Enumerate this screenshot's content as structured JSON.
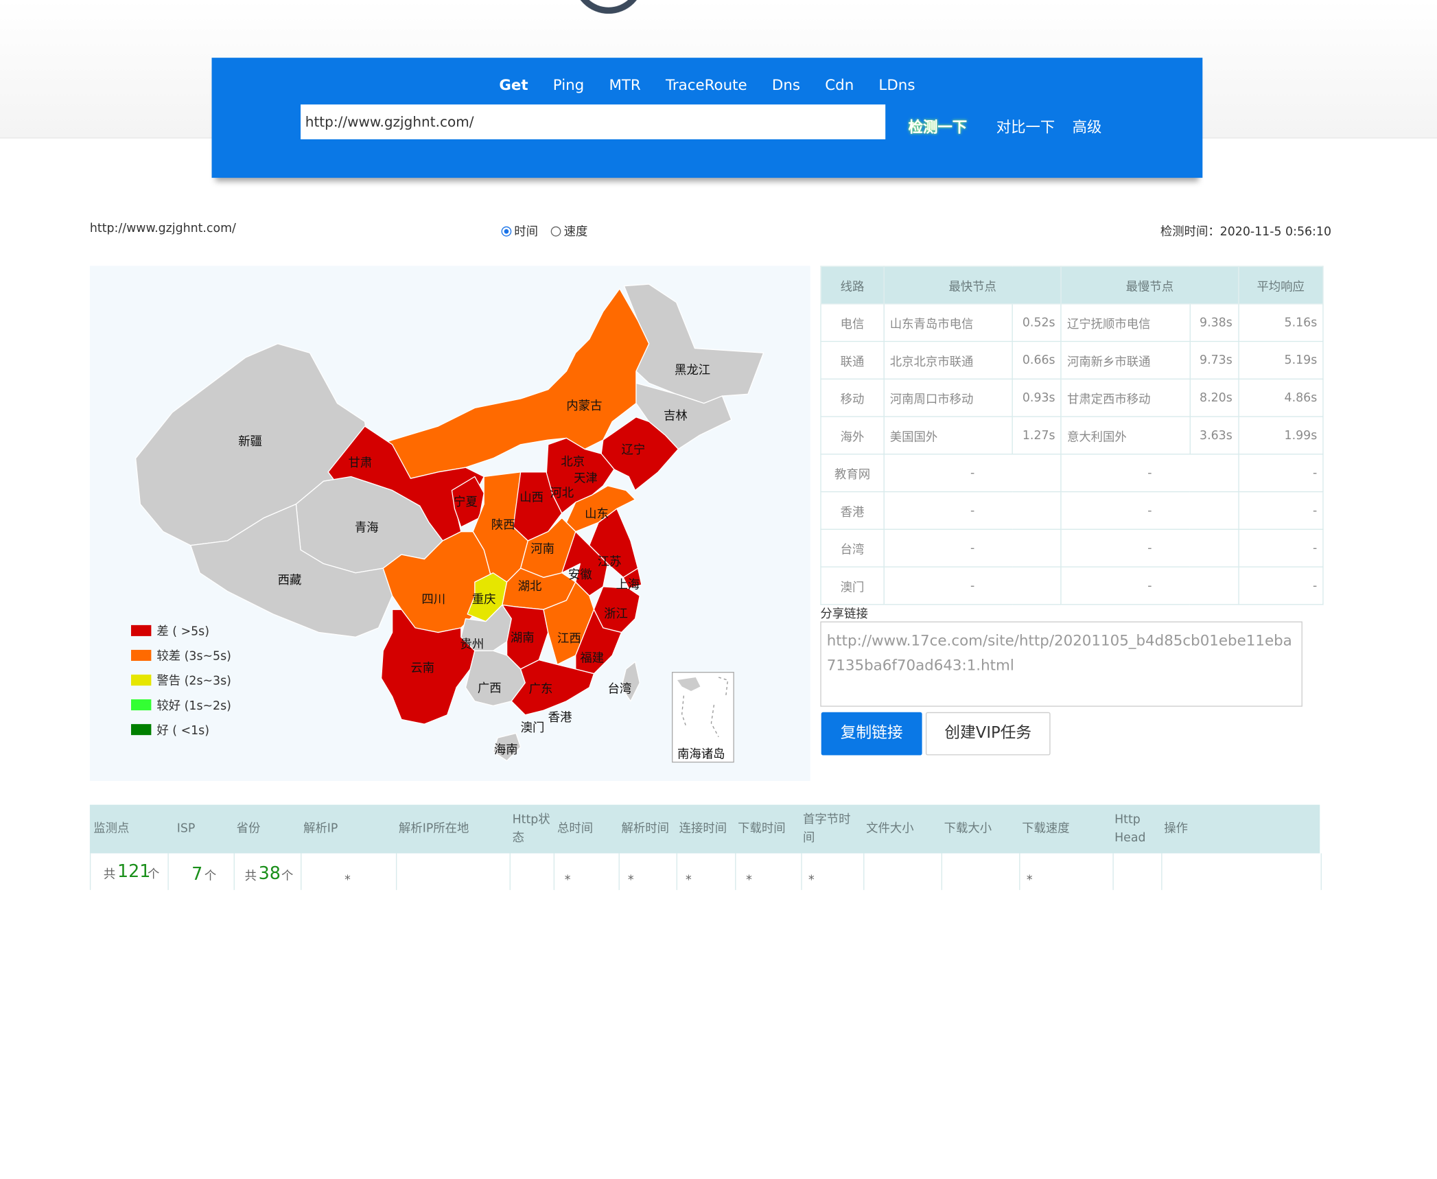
{
  "header": {
    "tabs": [
      "Get",
      "Ping",
      "MTR",
      "TraceRoute",
      "Dns",
      "Cdn",
      "LDns"
    ],
    "active_tab": "Get",
    "url_value": "http://www.gzjghnt.com/",
    "detect_label": "检测一下",
    "compare_label": "对比一下",
    "advanced_label": "高级"
  },
  "info": {
    "url": "http://www.gzjghnt.com/",
    "radio_time": "时间",
    "radio_speed": "速度",
    "check_time": "检测时间：2020-11-5 0:56:10"
  },
  "map": {
    "provinces": {
      "heilongjiang": "黑龙江",
      "jilin": "吉林",
      "liaoning": "辽宁",
      "neimenggu": "内蒙古",
      "xinjiang": "新疆",
      "gansu": "甘肃",
      "qinghai": "青海",
      "xizang": "西藏",
      "ningxia": "宁夏",
      "shanxi": "山西",
      "hebei": "河北",
      "beijing": "北京",
      "tianjin": "天津",
      "shandong": "山东",
      "shaanxi": "陕西",
      "henan": "河南",
      "jiangsu": "江苏",
      "anhui": "安徽",
      "shanghai": "上海",
      "hubei": "湖北",
      "sichuan": "四川",
      "chongqing": "重庆",
      "zhejiang": "浙江",
      "guizhou": "贵州",
      "hunan": "湖南",
      "jiangxi": "江西",
      "fujian": "福建",
      "yunnan": "云南",
      "guangxi": "广西",
      "guangdong": "广东",
      "taiwan": "台湾",
      "xianggang": "香港",
      "aomen": "澳门",
      "hainan": "海南"
    },
    "nanhai_label": "南海诸岛",
    "colors": {
      "bad": "#d40000",
      "worse": "#ff6a00",
      "warn": "#e6e600",
      "good": "#33ff33",
      "best": "#008000",
      "none": "#cccccc"
    },
    "legend": [
      {
        "label": "差 ( >5s)",
        "color": "#d40000"
      },
      {
        "label": "较差 (3s~5s)",
        "color": "#ff6a00"
      },
      {
        "label": "警告 (2s~3s)",
        "color": "#e6e600"
      },
      {
        "label": "较好 (1s~2s)",
        "color": "#33ff33"
      },
      {
        "label": "好 ( <1s)",
        "color": "#008000"
      }
    ]
  },
  "summary": {
    "headers": [
      "线路",
      "最快节点",
      "最慢节点",
      "平均响应"
    ],
    "rows": [
      {
        "line": "电信",
        "fast": "山东青岛市电信",
        "fast_t": "0.52s",
        "slow": "辽宁抚顺市电信",
        "slow_t": "9.38s",
        "avg": "5.16s"
      },
      {
        "line": "联通",
        "fast": "北京北京市联通",
        "fast_t": "0.66s",
        "slow": "河南新乡市联通",
        "slow_t": "9.73s",
        "avg": "5.19s"
      },
      {
        "line": "移动",
        "fast": "河南周口市移动",
        "fast_t": "0.93s",
        "slow": "甘肃定西市移动",
        "slow_t": "8.20s",
        "avg": "4.86s"
      },
      {
        "line": "海外",
        "fast": "美国国外",
        "fast_t": "1.27s",
        "slow": "意大利国外",
        "slow_t": "3.63s",
        "avg": "1.99s"
      },
      {
        "line": "教育网",
        "fast": "-",
        "fast_t": "",
        "slow": "-",
        "slow_t": "",
        "avg": "-"
      },
      {
        "line": "香港",
        "fast": "-",
        "fast_t": "",
        "slow": "-",
        "slow_t": "",
        "avg": "-"
      },
      {
        "line": "台湾",
        "fast": "-",
        "fast_t": "",
        "slow": "-",
        "slow_t": "",
        "avg": "-"
      },
      {
        "line": "澳门",
        "fast": "-",
        "fast_t": "",
        "slow": "-",
        "slow_t": "",
        "avg": "-"
      }
    ]
  },
  "share": {
    "label": "分享链接",
    "link": "http://www.17ce.com/site/http/20201105_b4d85cb01ebe11eba7135ba6f70ad643:1.html",
    "copy_label": "复制链接",
    "vip_label": "创建VIP任务"
  },
  "results": {
    "headers": [
      "监测点",
      "ISP",
      "省份",
      "解析IP",
      "解析IP所在地",
      "Http状态",
      "总时间",
      "解析时间",
      "连接时间",
      "下载时间",
      "首字节时间",
      "文件大小",
      "下载大小",
      "下载速度",
      "Http Head",
      "操作"
    ],
    "row": {
      "monitor_prefix": "共",
      "monitor_count": "121",
      "monitor_suffix": "个",
      "isp_count": "7",
      "isp_suffix": "个",
      "prov_prefix": "共",
      "prov_count": "38",
      "prov_suffix": "个",
      "star": "*"
    }
  }
}
